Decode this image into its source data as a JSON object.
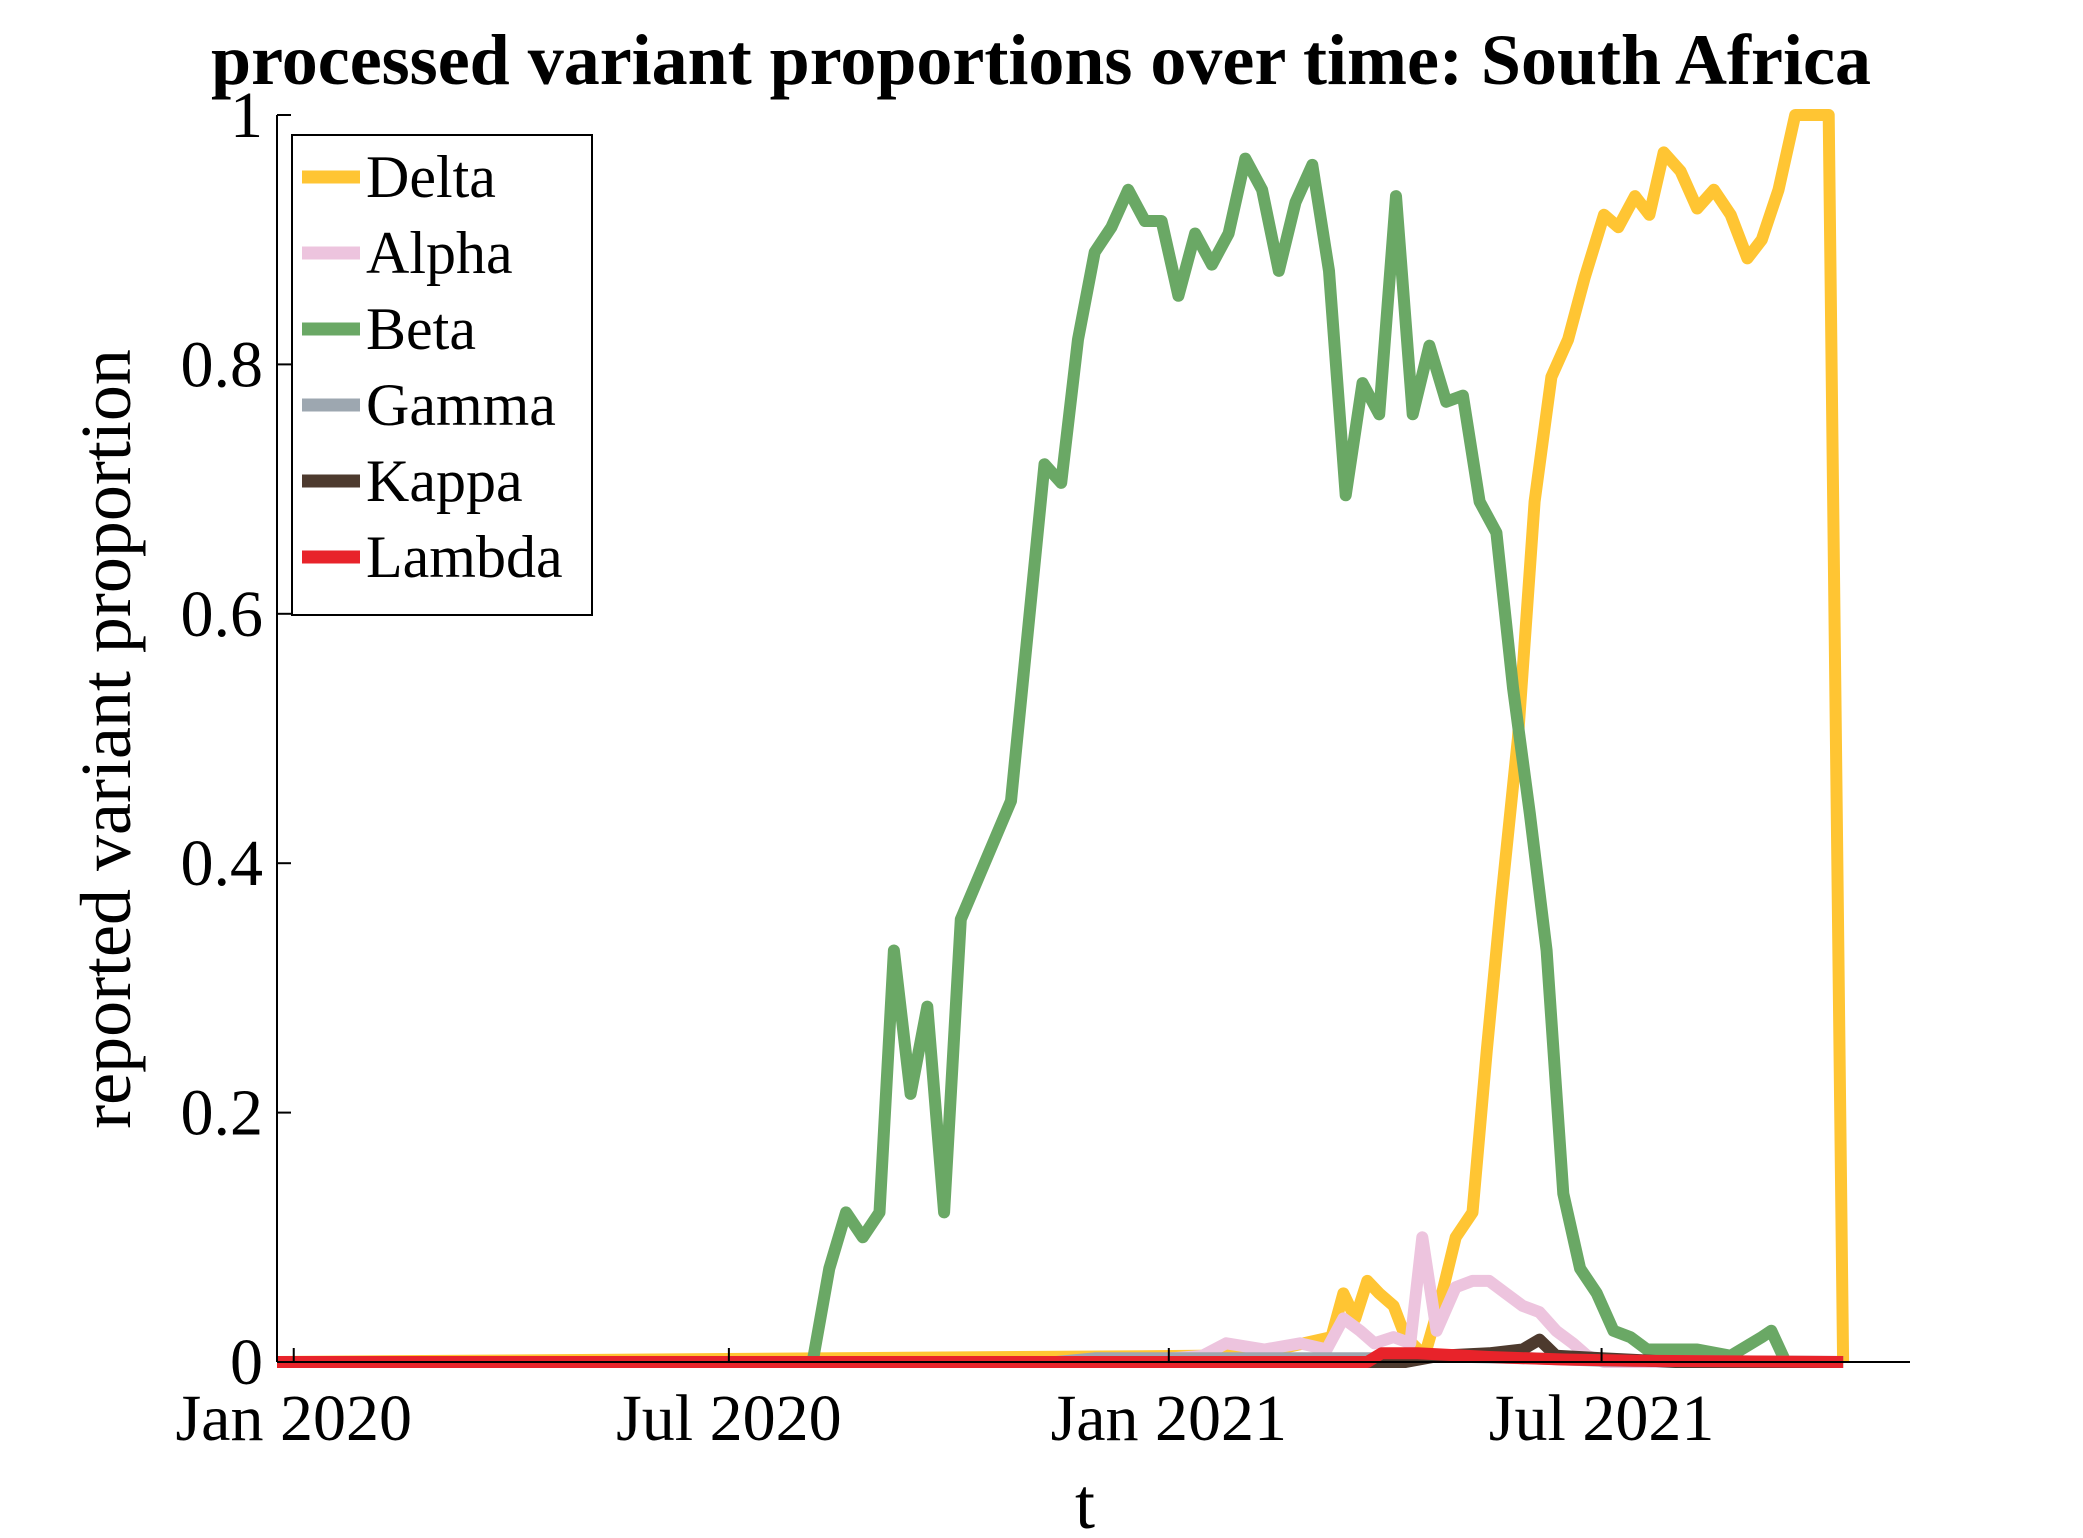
{
  "chart_data": {
    "type": "line",
    "title": "processed variant proportions over time: South Africa",
    "xlabel": "t",
    "ylabel": "reported variant proportion",
    "xlim": [
      "2019-12-25",
      "2021-11-07"
    ],
    "ylim": [
      0,
      1
    ],
    "x_ticks": [
      {
        "date": "2020-01-01",
        "label": "Jan 2020"
      },
      {
        "date": "2020-07-01",
        "label": "Jul 2020"
      },
      {
        "date": "2021-01-01",
        "label": "Jan 2021"
      },
      {
        "date": "2021-07-01",
        "label": "Jul 2021"
      }
    ],
    "y_ticks": [
      {
        "value": 0,
        "label": "0"
      },
      {
        "value": 0.2,
        "label": "0.2"
      },
      {
        "value": 0.4,
        "label": "0.4"
      },
      {
        "value": 0.6,
        "label": "0.6"
      },
      {
        "value": 0.8,
        "label": "0.8"
      },
      {
        "value": 1,
        "label": "1"
      }
    ],
    "grid": false,
    "legend_position": "top-left",
    "series": [
      {
        "name": "Delta",
        "color": "#FFC533",
        "points": [
          [
            "2019-12-25",
            0
          ],
          [
            "2021-01-15",
            0.005
          ],
          [
            "2021-02-15",
            0.01
          ],
          [
            "2021-03-10",
            0.02
          ],
          [
            "2021-03-15",
            0.055
          ],
          [
            "2021-03-20",
            0.035
          ],
          [
            "2021-03-25",
            0.065
          ],
          [
            "2021-03-30",
            0.055
          ],
          [
            "2021-04-05",
            0.045
          ],
          [
            "2021-04-10",
            0.02
          ],
          [
            "2021-04-18",
            0.005
          ],
          [
            "2021-04-24",
            0.045
          ],
          [
            "2021-05-01",
            0.1
          ],
          [
            "2021-05-08",
            0.12
          ],
          [
            "2021-05-14",
            0.25
          ],
          [
            "2021-05-20",
            0.37
          ],
          [
            "2021-05-27",
            0.5
          ],
          [
            "2021-06-03",
            0.69
          ],
          [
            "2021-06-10",
            0.79
          ],
          [
            "2021-06-17",
            0.82
          ],
          [
            "2021-06-24",
            0.87
          ],
          [
            "2021-07-02",
            0.92
          ],
          [
            "2021-07-08",
            0.91
          ],
          [
            "2021-07-15",
            0.935
          ],
          [
            "2021-07-21",
            0.92
          ],
          [
            "2021-07-27",
            0.97
          ],
          [
            "2021-08-03",
            0.955
          ],
          [
            "2021-08-10",
            0.925
          ],
          [
            "2021-08-17",
            0.94
          ],
          [
            "2021-08-24",
            0.92
          ],
          [
            "2021-08-31",
            0.885
          ],
          [
            "2021-09-06",
            0.9
          ],
          [
            "2021-09-13",
            0.94
          ],
          [
            "2021-09-20",
            1.0
          ],
          [
            "2021-09-27",
            1.0
          ],
          [
            "2021-10-04",
            1.0
          ],
          [
            "2021-10-10",
            0.0
          ]
        ]
      },
      {
        "name": "Alpha",
        "color": "#EDC4DE",
        "points": [
          [
            "2019-12-25",
            0
          ],
          [
            "2020-12-15",
            0
          ],
          [
            "2021-01-15",
            0.005
          ],
          [
            "2021-01-25",
            0.015
          ],
          [
            "2021-02-10",
            0.01
          ],
          [
            "2021-02-25",
            0.015
          ],
          [
            "2021-03-08",
            0.01
          ],
          [
            "2021-03-15",
            0.035
          ],
          [
            "2021-03-22",
            0.025
          ],
          [
            "2021-03-28",
            0.015
          ],
          [
            "2021-04-05",
            0.02
          ],
          [
            "2021-04-12",
            0.015
          ],
          [
            "2021-04-17",
            0.1
          ],
          [
            "2021-04-23",
            0.025
          ],
          [
            "2021-05-01",
            0.06
          ],
          [
            "2021-05-08",
            0.065
          ],
          [
            "2021-05-15",
            0.065
          ],
          [
            "2021-05-22",
            0.055
          ],
          [
            "2021-05-29",
            0.045
          ],
          [
            "2021-06-05",
            0.04
          ],
          [
            "2021-06-12",
            0.025
          ],
          [
            "2021-06-19",
            0.015
          ],
          [
            "2021-06-25",
            0.005
          ],
          [
            "2021-07-02",
            0.0
          ],
          [
            "2021-10-10",
            0.0
          ]
        ]
      },
      {
        "name": "Beta",
        "color": "#6AA865",
        "points": [
          [
            "2019-12-25",
            0
          ],
          [
            "2020-08-05",
            0
          ],
          [
            "2020-08-12",
            0.075
          ],
          [
            "2020-08-19",
            0.12
          ],
          [
            "2020-08-26",
            0.1
          ],
          [
            "2020-09-02",
            0.12
          ],
          [
            "2020-09-08",
            0.33
          ],
          [
            "2020-09-15",
            0.215
          ],
          [
            "2020-09-22",
            0.285
          ],
          [
            "2020-09-29",
            0.12
          ],
          [
            "2020-10-06",
            0.355
          ],
          [
            "2020-10-27",
            0.45
          ],
          [
            "2020-11-10",
            0.72
          ],
          [
            "2020-11-17",
            0.705
          ],
          [
            "2020-11-24",
            0.82
          ],
          [
            "2020-12-01",
            0.89
          ],
          [
            "2020-12-08",
            0.91
          ],
          [
            "2020-12-15",
            0.94
          ],
          [
            "2020-12-22",
            0.915
          ],
          [
            "2020-12-29",
            0.915
          ],
          [
            "2021-01-05",
            0.855
          ],
          [
            "2021-01-12",
            0.905
          ],
          [
            "2021-01-19",
            0.88
          ],
          [
            "2021-01-26",
            0.905
          ],
          [
            "2021-02-02",
            0.965
          ],
          [
            "2021-02-09",
            0.94
          ],
          [
            "2021-02-16",
            0.875
          ],
          [
            "2021-02-23",
            0.93
          ],
          [
            "2021-03-02",
            0.96
          ],
          [
            "2021-03-09",
            0.875
          ],
          [
            "2021-03-16",
            0.695
          ],
          [
            "2021-03-23",
            0.785
          ],
          [
            "2021-03-30",
            0.76
          ],
          [
            "2021-04-06",
            0.935
          ],
          [
            "2021-04-13",
            0.76
          ],
          [
            "2021-04-20",
            0.815
          ],
          [
            "2021-04-27",
            0.77
          ],
          [
            "2021-05-04",
            0.775
          ],
          [
            "2021-05-11",
            0.69
          ],
          [
            "2021-05-18",
            0.665
          ],
          [
            "2021-05-25",
            0.54
          ],
          [
            "2021-06-01",
            0.44
          ],
          [
            "2021-06-08",
            0.33
          ],
          [
            "2021-06-15",
            0.135
          ],
          [
            "2021-06-22",
            0.075
          ],
          [
            "2021-06-29",
            0.055
          ],
          [
            "2021-07-06",
            0.025
          ],
          [
            "2021-07-13",
            0.02
          ],
          [
            "2021-07-20",
            0.01
          ],
          [
            "2021-08-10",
            0.01
          ],
          [
            "2021-08-24",
            0.005
          ],
          [
            "2021-09-06",
            0.02
          ],
          [
            "2021-09-10",
            0.025
          ],
          [
            "2021-09-16",
            0.0
          ],
          [
            "2021-10-10",
            0.0
          ]
        ]
      },
      {
        "name": "Gamma",
        "color": "#9DA7B0",
        "points": [
          [
            "2019-12-25",
            0
          ],
          [
            "2020-11-15",
            0
          ],
          [
            "2020-12-01",
            0.003
          ],
          [
            "2021-03-31",
            0.003
          ],
          [
            "2021-04-15",
            0.005
          ],
          [
            "2021-06-01",
            0.003
          ],
          [
            "2021-07-01",
            0.001
          ],
          [
            "2021-10-10",
            0.0
          ]
        ]
      },
      {
        "name": "Kappa",
        "color": "#4D3A2E",
        "points": [
          [
            "2019-12-25",
            0
          ],
          [
            "2021-03-25",
            0
          ],
          [
            "2021-04-10",
            0.0
          ],
          [
            "2021-04-24",
            0.005
          ],
          [
            "2021-05-15",
            0.007
          ],
          [
            "2021-05-29",
            0.01
          ],
          [
            "2021-06-05",
            0.018
          ],
          [
            "2021-06-12",
            0.005
          ],
          [
            "2021-07-01",
            0.003
          ],
          [
            "2021-08-01",
            0.0
          ],
          [
            "2021-10-10",
            0.0
          ]
        ]
      },
      {
        "name": "Lambda",
        "color": "#E8232A",
        "points": [
          [
            "2019-12-25",
            0
          ],
          [
            "2021-03-25",
            0
          ],
          [
            "2021-03-31",
            0.007
          ],
          [
            "2021-04-15",
            0.007
          ],
          [
            "2021-05-15",
            0.004
          ],
          [
            "2021-06-15",
            0.002
          ],
          [
            "2021-07-15",
            0.001
          ],
          [
            "2021-10-10",
            0.0
          ]
        ]
      }
    ]
  }
}
